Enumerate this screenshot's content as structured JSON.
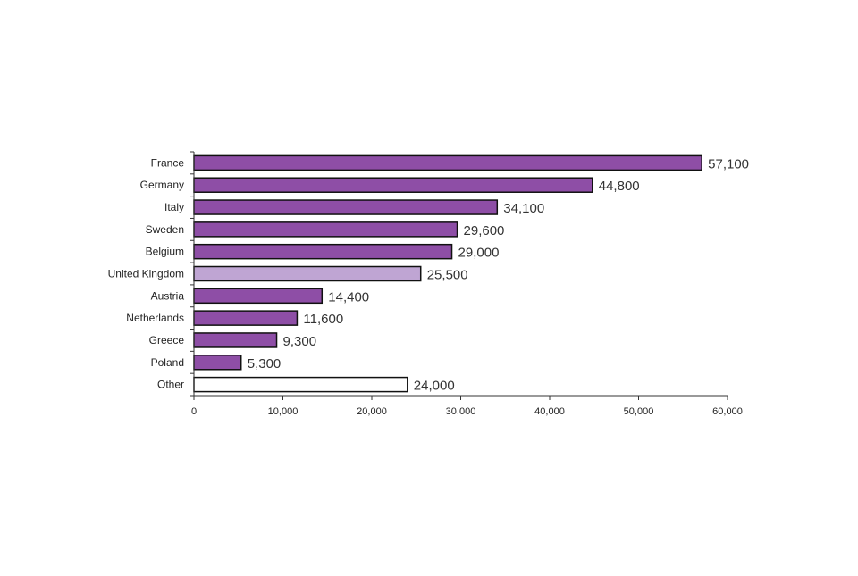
{
  "chart_data": {
    "type": "bar",
    "orientation": "horizontal",
    "categories": [
      "France",
      "Germany",
      "Italy",
      "Sweden",
      "Belgium",
      "United Kingdom",
      "Austria",
      "Netherlands",
      "Greece",
      "Poland",
      "Other"
    ],
    "values": [
      57100,
      44800,
      34100,
      29600,
      29000,
      25500,
      14400,
      11600,
      9300,
      5300,
      24000
    ],
    "value_labels": [
      "57,100",
      "44,800",
      "34,100",
      "29,600",
      "29,000",
      "25,500",
      "14,400",
      "11,600",
      "9,300",
      "5,300",
      "24,000"
    ],
    "bar_colors": [
      "#8e4ea6",
      "#8e4ea6",
      "#8e4ea6",
      "#8e4ea6",
      "#8e4ea6",
      "#bfa5d3",
      "#8e4ea6",
      "#8e4ea6",
      "#8e4ea6",
      "#8e4ea6",
      "#ffffff"
    ],
    "xlim": [
      0,
      60000
    ],
    "x_ticks": [
      0,
      10000,
      20000,
      30000,
      40000,
      50000,
      60000
    ],
    "x_tick_labels": [
      "0",
      "10,000",
      "20,000",
      "30,000",
      "40,000",
      "50,000",
      "60,000"
    ],
    "title": "",
    "xlabel": "",
    "ylabel": "",
    "grid": false,
    "legend": "none"
  }
}
